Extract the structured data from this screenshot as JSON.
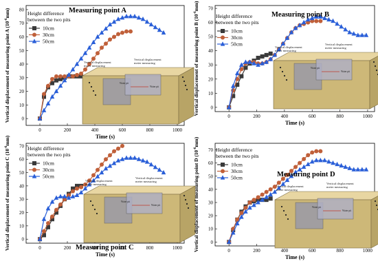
{
  "chart_data": [
    {
      "type": "line",
      "title": "Measuring point A",
      "xlabel": "Time (s)",
      "ylabel": "Vertical displacement of measuring point A (10",
      "ylabel_sup": "-6",
      "ylabel_unit": "mm)",
      "xlim": [
        -100,
        1050
      ],
      "ylim": [
        -5,
        83
      ],
      "xticks": [
        0,
        200,
        400,
        600,
        800,
        1000
      ],
      "yticks": [
        0,
        10,
        20,
        30,
        40,
        50,
        60,
        70,
        80
      ],
      "legend": {
        "title_line1": "Height difference",
        "title_line2": "between the two pits",
        "position": "top-left"
      },
      "series": [
        {
          "name": "10cm",
          "color": "#3a3a3a",
          "marker": "square",
          "x": [
            0,
            30,
            60,
            90,
            120,
            150,
            180,
            210,
            240,
            270,
            300
          ],
          "y": [
            0,
            16,
            23,
            26,
            28,
            29,
            30,
            31,
            31,
            31,
            31
          ]
        },
        {
          "name": "30cm",
          "color": "#c0603a",
          "marker": "circle",
          "x": [
            0,
            30,
            60,
            90,
            120,
            150,
            180,
            210,
            240,
            270,
            300,
            330,
            360,
            390,
            420,
            450,
            480,
            510,
            540,
            570,
            600,
            630,
            660
          ],
          "y": [
            0,
            18,
            24,
            29,
            31,
            31,
            31,
            31,
            31,
            32,
            33,
            36,
            40,
            44,
            48,
            52,
            55,
            58,
            60,
            62,
            63,
            64,
            64
          ]
        },
        {
          "name": "50cm",
          "color": "#2a5fd8",
          "marker": "triangle",
          "x": [
            0,
            30,
            60,
            90,
            120,
            150,
            180,
            210,
            240,
            270,
            300,
            330,
            360,
            390,
            420,
            450,
            480,
            510,
            540,
            570,
            600,
            630,
            660,
            690,
            720,
            750,
            780,
            810,
            840,
            870,
            900
          ],
          "y": [
            0,
            6,
            11,
            16,
            20,
            24,
            28,
            32,
            36,
            40,
            44,
            48,
            52,
            56,
            60,
            63,
            66,
            69,
            71,
            73,
            74,
            75,
            75,
            75,
            74,
            73,
            71,
            69,
            67,
            65,
            63
          ]
        }
      ],
      "inset": {
        "label1": "Vertical displacement meter measuring",
        "label2": "Vertical displacement meter measuring",
        "label3": "Water pit",
        "label4": "Water pit"
      }
    },
    {
      "type": "line",
      "title": "Measuring point B",
      "xlabel": "Time (s)",
      "ylabel": "Vertical displacement of measuring point B (10",
      "ylabel_sup": "-6",
      "ylabel_unit": "mm)",
      "xlim": [
        -100,
        1050
      ],
      "ylim": [
        -3,
        72
      ],
      "xticks": [
        0,
        200,
        400,
        600,
        800,
        1000
      ],
      "yticks": [
        0,
        10,
        20,
        30,
        40,
        50,
        60,
        70
      ],
      "legend": {
        "title_line1": "Height difference",
        "title_line2": "between the two pits",
        "position": "top-left"
      },
      "series": [
        {
          "name": "10cm",
          "color": "#3a3a3a",
          "marker": "square",
          "x": [
            0,
            30,
            60,
            90,
            120,
            150,
            180,
            210,
            240,
            270,
            300
          ],
          "y": [
            0,
            8,
            16,
            22,
            28,
            31,
            33,
            35,
            36,
            37,
            38
          ]
        },
        {
          "name": "30cm",
          "color": "#c0603a",
          "marker": "circle",
          "x": [
            0,
            30,
            60,
            90,
            120,
            150,
            180,
            210,
            240,
            270,
            300,
            330,
            360,
            390,
            420,
            450,
            480,
            510,
            540,
            570,
            600,
            630,
            660
          ],
          "y": [
            0,
            12,
            20,
            27,
            31,
            32,
            32,
            31,
            31,
            32,
            34,
            37,
            41,
            45,
            49,
            53,
            56,
            58,
            59,
            60,
            61,
            61,
            61
          ]
        },
        {
          "name": "50cm",
          "color": "#2a5fd8",
          "marker": "triangle",
          "x": [
            0,
            30,
            60,
            90,
            120,
            150,
            180,
            210,
            240,
            270,
            300,
            330,
            360,
            390,
            420,
            450,
            480,
            510,
            540,
            570,
            600,
            630,
            660,
            690,
            720,
            750,
            780,
            810,
            840,
            870,
            900,
            930,
            960,
            990
          ],
          "y": [
            0,
            15,
            24,
            30,
            32,
            32,
            31,
            30,
            31,
            32,
            34,
            37,
            41,
            45,
            49,
            53,
            56,
            58,
            60,
            62,
            63,
            64,
            64,
            63,
            62,
            61,
            59,
            57,
            55,
            53,
            52,
            51,
            51,
            51
          ]
        }
      ],
      "inset": {
        "label1": "Vertical displacement meter measuring",
        "label2": "Vertical displacement meter measuring",
        "label3": "Water pit",
        "label4": "Water pit"
      }
    },
    {
      "type": "line",
      "title": "Measuring point C",
      "xlabel": "Time (s)",
      "ylabel": "Vertical displacement of measuring point C (10",
      "ylabel_sup": "-6",
      "ylabel_unit": "mm)",
      "xlim": [
        -100,
        1050
      ],
      "ylim": [
        -3,
        72
      ],
      "xticks": [
        0,
        200,
        400,
        600,
        800,
        1000
      ],
      "yticks": [
        0,
        10,
        20,
        30,
        40,
        50,
        60,
        70
      ],
      "legend": {
        "title_line1": "Height difference",
        "title_line2": "between the two pits",
        "position": "top-left"
      },
      "series": [
        {
          "name": "10cm",
          "color": "#3a3a3a",
          "marker": "square",
          "x": [
            0,
            30,
            60,
            90,
            120,
            150,
            180,
            210,
            240,
            270,
            300
          ],
          "y": [
            0,
            3,
            9,
            15,
            20,
            25,
            30,
            34,
            38,
            40,
            40
          ]
        },
        {
          "name": "30cm",
          "color": "#c0603a",
          "marker": "circle",
          "x": [
            0,
            30,
            60,
            90,
            120,
            150,
            180,
            210,
            240,
            270,
            300,
            330,
            360,
            390,
            420,
            450,
            480,
            510,
            540,
            570,
            600
          ],
          "y": [
            0,
            6,
            12,
            17,
            22,
            26,
            30,
            33,
            36,
            38,
            39,
            41,
            44,
            48,
            52,
            56,
            60,
            63,
            66,
            68,
            70
          ]
        },
        {
          "name": "50cm",
          "color": "#2a5fd8",
          "marker": "triangle",
          "x": [
            0,
            30,
            60,
            90,
            120,
            150,
            180,
            210,
            240,
            270,
            300,
            330,
            360,
            390,
            420,
            450,
            480,
            510,
            540,
            570,
            600,
            630,
            660,
            690,
            720,
            750,
            780,
            810,
            840,
            870,
            900
          ],
          "y": [
            0,
            15,
            23,
            28,
            31,
            32,
            32,
            31,
            32,
            33,
            35,
            38,
            41,
            44,
            47,
            50,
            53,
            55,
            57,
            59,
            60,
            61,
            61,
            61,
            60,
            59,
            58,
            56,
            54,
            52,
            50
          ]
        }
      ],
      "inset": {
        "label1": "Vertical displacement meter measuring",
        "label2": "Vertical displacement meter measuring",
        "label3": "Water pit",
        "label4": "Water pit"
      }
    },
    {
      "type": "line",
      "title": "Measuring point D",
      "xlabel": "Time (s)",
      "ylabel": "Vertical displacement of measuring point D (10",
      "ylabel_sup": "-6",
      "ylabel_unit": "mm)",
      "xlim": [
        -100,
        1050
      ],
      "ylim": [
        -3,
        75
      ],
      "xticks": [
        0,
        200,
        400,
        600,
        800,
        1000
      ],
      "yticks": [
        0,
        10,
        20,
        30,
        40,
        50,
        60,
        70
      ],
      "legend": {
        "title_line1": "Height difference",
        "title_line2": "between the two pits",
        "position": "top-left"
      },
      "series": [
        {
          "name": "10cm",
          "color": "#3a3a3a",
          "marker": "square",
          "x": [
            0,
            30,
            60,
            90,
            120,
            150,
            180,
            210,
            240,
            270,
            300
          ],
          "y": [
            0,
            9,
            17,
            23,
            27,
            30,
            31,
            32,
            32,
            32,
            33
          ]
        },
        {
          "name": "30cm",
          "color": "#c0603a",
          "marker": "circle",
          "x": [
            0,
            30,
            60,
            90,
            120,
            150,
            180,
            210,
            240,
            270,
            300,
            330,
            360,
            390,
            420,
            450,
            480,
            510,
            540,
            570,
            600,
            630,
            660
          ],
          "y": [
            0,
            10,
            17,
            22,
            26,
            30,
            32,
            34,
            36,
            38,
            40,
            42,
            45,
            48,
            51,
            54,
            57,
            60,
            63,
            66,
            68,
            69,
            69
          ]
        },
        {
          "name": "50cm",
          "color": "#2a5fd8",
          "marker": "triangle",
          "x": [
            0,
            30,
            60,
            90,
            120,
            150,
            180,
            210,
            240,
            270,
            300,
            330,
            360,
            390,
            420,
            450,
            480,
            510,
            540,
            570,
            600,
            630,
            660,
            690,
            720,
            750,
            780,
            810,
            840,
            870,
            900,
            930,
            960,
            990
          ],
          "y": [
            0,
            7,
            14,
            19,
            23,
            26,
            28,
            30,
            32,
            34,
            36,
            38,
            41,
            44,
            47,
            50,
            53,
            55,
            57,
            59,
            61,
            62,
            62,
            62,
            61,
            60,
            59,
            58,
            57,
            56,
            55,
            55,
            55,
            55
          ]
        }
      ],
      "inset": {
        "label1": "Vertical displacement meter measuring",
        "label2": "Vertical displacement meter measuring",
        "label3": "Water pit",
        "label4": "Water pit"
      }
    }
  ]
}
